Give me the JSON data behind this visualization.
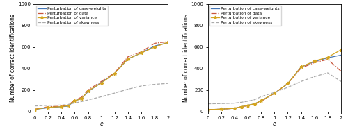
{
  "left": {
    "case_weights": [
      20,
      35,
      45,
      50,
      100,
      120,
      185,
      270,
      355,
      490,
      545,
      610,
      640
    ],
    "data_perturb": [
      20,
      45,
      50,
      58,
      108,
      132,
      200,
      280,
      360,
      510,
      555,
      635,
      650
    ],
    "variance": [
      20,
      40,
      45,
      55,
      100,
      118,
      192,
      265,
      355,
      490,
      545,
      600,
      645
    ],
    "skewness": [
      52,
      58,
      60,
      65,
      80,
      92,
      108,
      138,
      172,
      208,
      238,
      253,
      262
    ]
  },
  "right": {
    "case_weights": [
      18,
      22,
      30,
      45,
      58,
      72,
      100,
      170,
      260,
      415,
      465,
      500,
      525
    ],
    "data_perturb": [
      18,
      22,
      30,
      42,
      55,
      68,
      95,
      170,
      260,
      405,
      455,
      485,
      375
    ],
    "variance": [
      18,
      22,
      30,
      45,
      58,
      72,
      100,
      170,
      260,
      415,
      470,
      505,
      575
    ],
    "skewness": [
      72,
      74,
      78,
      86,
      96,
      110,
      138,
      178,
      225,
      280,
      325,
      360,
      280
    ]
  },
  "x": [
    0,
    0.2,
    0.4,
    0.5,
    0.6,
    0.7,
    0.8,
    1.0,
    1.2,
    1.4,
    1.6,
    1.8,
    2.0
  ],
  "xlim": [
    0,
    2
  ],
  "ylim": [
    0,
    1000
  ],
  "xlabel": "e",
  "ylabel": "Number of correct identifications",
  "xticks": [
    0,
    0.2,
    0.4,
    0.6,
    0.8,
    1,
    1.2,
    1.4,
    1.6,
    1.8,
    2
  ],
  "yticks": [
    0,
    200,
    400,
    600,
    800,
    1000
  ],
  "color_case_weights": "#4475b4",
  "color_data": "#c8553a",
  "color_variance": "#d4a520",
  "color_skewness": "#aaaaaa",
  "legend_labels": [
    "Perturbation of case-weights",
    "Perturbation of data",
    "Perturbation of variance",
    "Perturbation of skewness"
  ]
}
